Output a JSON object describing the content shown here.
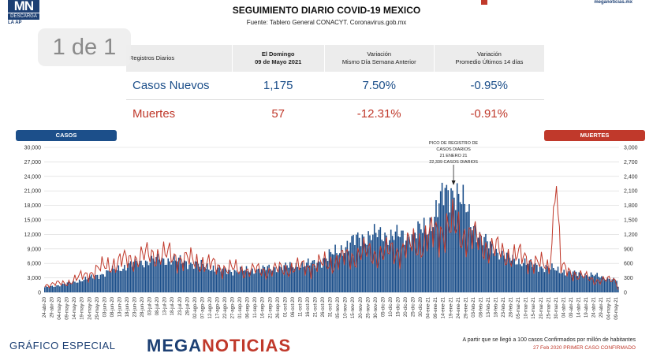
{
  "header": {
    "logo_text": "MN",
    "logo_sub": "DESCARGA",
    "logo_sub2": "LA AP",
    "brand_mini": "meganoticias.mx",
    "title": "SEGUIMIENTO DIARIO COVID-19 MEXICO",
    "source": "Fuente: Tablero General CONACYT. Coronavirus.gob.mx"
  },
  "page_badge": "1 de 1",
  "table": {
    "col_label": "Registros Diarios",
    "col_date_line1": "El Domingo",
    "col_date_line2": "09 de Mayo 2021",
    "col_var1_line1": "Variación",
    "col_var1_line2": "Mismo Día Semana Anterior",
    "col_var2_line1": "Variación",
    "col_var2_line2": "Promedio Últimos 14 días",
    "rows": [
      {
        "label": "Casos Nuevos",
        "value": "1,175",
        "var_week": "7.50%",
        "var_14d": "-0.95%"
      },
      {
        "label": "Muertes",
        "value": "57",
        "var_week": "-12.31%",
        "var_14d": "-0.91%"
      }
    ]
  },
  "legend": {
    "casos": "CASOS",
    "muertes": "MUERTES"
  },
  "colors": {
    "casos": "#1c4f8a",
    "muertes": "#c0392b",
    "grid": "#d8d8d8"
  },
  "chart_data": {
    "type": "bar",
    "annotation": [
      "PICO DE REGISTRO DE",
      "CASOS DIARIOS",
      "21 ENERO 21",
      "22,339 CASOS DIARIOS"
    ],
    "left_axis": {
      "min": 0,
      "max": 30000,
      "ticks": [
        "0",
        "3,000",
        "6,000",
        "9,000",
        "12,000",
        "15,000",
        "18,000",
        "21,000",
        "24,000",
        "27,000",
        "30,000"
      ]
    },
    "right_axis": {
      "min": 0,
      "max": 3000,
      "ticks": [
        "0",
        "300",
        "600",
        "900",
        "1,200",
        "1,500",
        "1,800",
        "2,100",
        "2,400",
        "2,700",
        "3,000"
      ]
    },
    "x_ticks": [
      "24-abr-20",
      "29-abr-20",
      "04-may-20",
      "09-may-20",
      "14-may-20",
      "19-may-20",
      "24-may-20",
      "29-may-20",
      "03-jun-20",
      "08-jun-20",
      "13-jun-20",
      "18-jun-20",
      "23-jun-20",
      "28-jun-20",
      "03-jul-20",
      "08-jul-20",
      "13-jul-20",
      "18-jul-20",
      "23-jul-20",
      "28-jul-20",
      "02-ago-20",
      "07-ago-20",
      "12-ago-20",
      "17-ago-20",
      "22-ago-20",
      "27-ago-20",
      "01-sep-20",
      "06-sep-20",
      "11-sep-20",
      "16-sep-20",
      "21-sep-20",
      "26-sep-20",
      "01-oct-20",
      "06-oct-20",
      "11-oct-20",
      "16-oct-20",
      "21-oct-20",
      "26-oct-20",
      "31-oct-20",
      "05-nov-20",
      "10-nov-20",
      "15-nov-20",
      "20-nov-20",
      "25-nov-20",
      "30-nov-20",
      "05-dic-20",
      "10-dic-20",
      "15-dic-20",
      "20-dic-20",
      "25-dic-20",
      "30-dic-20",
      "04-ene-21",
      "09-ene-21",
      "14-ene-21",
      "19-ene-21",
      "24-ene-21",
      "29-ene-21",
      "03-feb-21",
      "08-feb-21",
      "13-feb-21",
      "18-feb-21",
      "23-feb-21",
      "28-feb-21",
      "05-mar-21",
      "10-mar-21",
      "15-mar-21",
      "20-mar-21",
      "25-mar-21",
      "30-mar-21",
      "04-abr-21",
      "09-abr-21",
      "14-abr-21",
      "19-abr-21",
      "24-abr-21",
      "29-abr-21",
      "04-may-21",
      "09-may-21"
    ],
    "series": [
      {
        "name": "CASOS",
        "axis": "left",
        "anchors": [
          [
            0,
            1000
          ],
          [
            15,
            1800
          ],
          [
            30,
            3000
          ],
          [
            45,
            4500
          ],
          [
            60,
            6000
          ],
          [
            75,
            6800
          ],
          [
            90,
            6500
          ],
          [
            105,
            5500
          ],
          [
            120,
            4500
          ],
          [
            135,
            4500
          ],
          [
            150,
            5000
          ],
          [
            165,
            5500
          ],
          [
            180,
            6000
          ],
          [
            195,
            8500
          ],
          [
            210,
            11500
          ],
          [
            225,
            12000
          ],
          [
            240,
            11500
          ],
          [
            255,
            13500
          ],
          [
            265,
            20000
          ],
          [
            272,
            21500
          ],
          [
            280,
            17000
          ],
          [
            290,
            11000
          ],
          [
            305,
            7500
          ],
          [
            320,
            6000
          ],
          [
            335,
            5000
          ],
          [
            350,
            4000
          ],
          [
            365,
            3500
          ],
          [
            380,
            2500
          ],
          [
            381,
            1175
          ]
        ]
      },
      {
        "name": "MUERTES",
        "axis": "right",
        "anchors": [
          [
            0,
            150
          ],
          [
            15,
            200
          ],
          [
            30,
            400
          ],
          [
            45,
            600
          ],
          [
            60,
            700
          ],
          [
            75,
            800
          ],
          [
            90,
            700
          ],
          [
            105,
            600
          ],
          [
            120,
            500
          ],
          [
            135,
            450
          ],
          [
            150,
            450
          ],
          [
            165,
            500
          ],
          [
            180,
            550
          ],
          [
            195,
            650
          ],
          [
            210,
            800
          ],
          [
            225,
            800
          ],
          [
            240,
            900
          ],
          [
            255,
            1100
          ],
          [
            265,
            1350
          ],
          [
            272,
            1300
          ],
          [
            280,
            1200
          ],
          [
            290,
            1000
          ],
          [
            305,
            800
          ],
          [
            320,
            700
          ],
          [
            335,
            500
          ],
          [
            340,
            2200
          ],
          [
            343,
            500
          ],
          [
            350,
            400
          ],
          [
            365,
            250
          ],
          [
            380,
            250
          ],
          [
            381,
            57
          ]
        ]
      }
    ]
  },
  "footer": {
    "label": "GRÁFICO ESPECIAL",
    "brand_a": "MEGA",
    "brand_b": "NOTICIAS",
    "note1": "A partir que se llegó a 100 casos Confirmados por millón de habitantes",
    "note2": "27 Feb 2020 PRIMER CASO CONFIRMADO"
  }
}
